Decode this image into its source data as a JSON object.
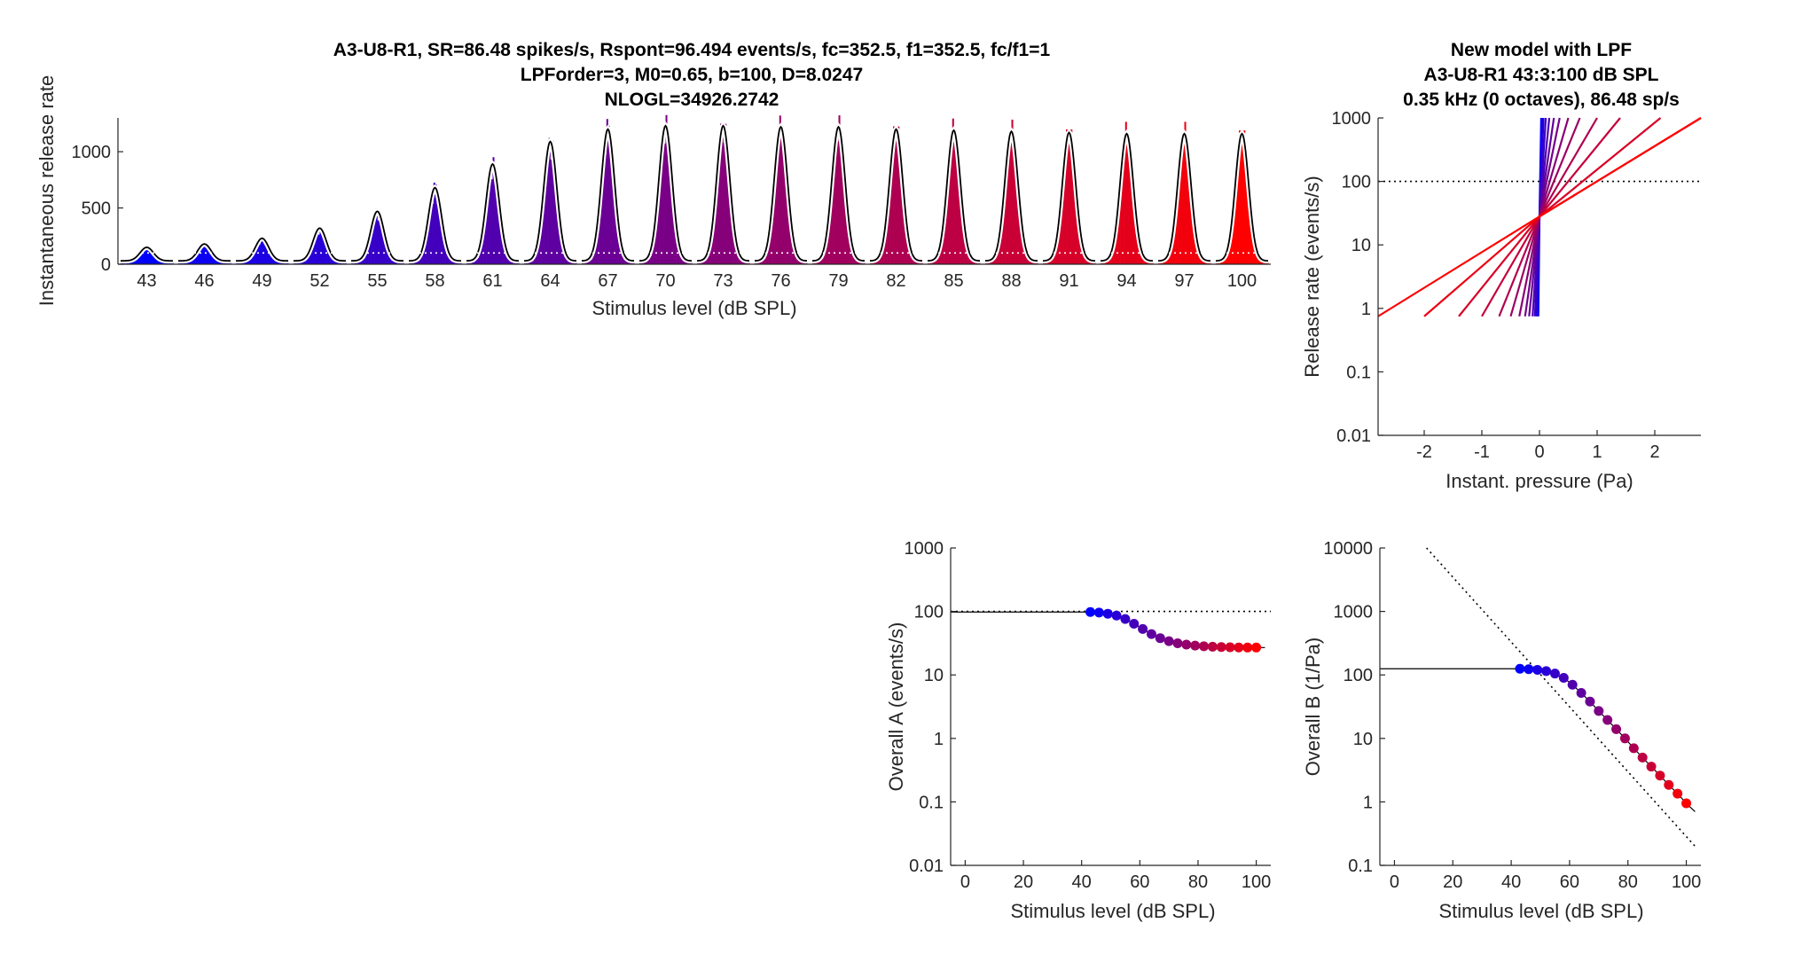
{
  "colors": {
    "low_level": "#0000ff",
    "high_level": "#ff0000",
    "model_fit": "#000000",
    "envelope_outline": "#ffffff",
    "reference_dotted": "#000000"
  },
  "chart_data": [
    {
      "id": "psth",
      "type": "bar",
      "title_lines": [
        "A3-U8-R1, SR=86.48 spikes/s, Rspont=96.494 events/s, fc=352.5, f1=352.5, fc/f1=1",
        "LPForder=3, M0=0.65, b=100, D=8.0247",
        "NLOGL=34926.2742"
      ],
      "xlabel": "Stimulus level (dB SPL)",
      "ylabel": "Instantaneous release rate",
      "ylim": [
        0,
        1300
      ],
      "yticks": [
        "0",
        "500",
        "1000"
      ],
      "categories": [
        "43",
        "46",
        "49",
        "52",
        "55",
        "58",
        "61",
        "64",
        "67",
        "70",
        "73",
        "76",
        "79",
        "82",
        "85",
        "88",
        "91",
        "94",
        "97",
        "100"
      ],
      "peak_rate": [
        150,
        180,
        230,
        320,
        470,
        680,
        890,
        1090,
        1200,
        1230,
        1230,
        1220,
        1220,
        1200,
        1190,
        1180,
        1170,
        1160,
        1160,
        1160
      ],
      "spont_rate": 100
    },
    {
      "id": "io",
      "type": "line",
      "title_lines": [
        "New model with LPF",
        "A3-U8-R1    43:3:100 dB SPL",
        "0.35 kHz (0 octaves), 86.48 sp/s"
      ],
      "xlabel": "Instant. pressure (Pa)",
      "ylabel": "Release rate (events/s)",
      "xlim": [
        -2.8,
        2.8
      ],
      "ylim_log10": [
        -2,
        3
      ],
      "xticks": [
        "-2",
        "-1",
        "0",
        "1",
        "2"
      ],
      "yticks": [
        "0.01",
        "0.1",
        "1",
        "10",
        "100",
        "1000"
      ],
      "reference_rate": 100,
      "series": [
        {
          "x": [
            -2.8,
            2.8
          ],
          "y": [
            0.75,
            1000
          ]
        },
        {
          "x": [
            -2.0,
            2.8
          ],
          "y": [
            0.75,
            1000
          ]
        },
        {
          "x": [
            -1.4,
            2.1
          ],
          "y": [
            0.75,
            1000
          ]
        },
        {
          "x": [
            -1.0,
            1.4
          ],
          "y": [
            0.75,
            1000
          ]
        },
        {
          "x": [
            -0.7,
            1.0
          ],
          "y": [
            0.75,
            1000
          ]
        },
        {
          "x": [
            -0.5,
            0.7
          ],
          "y": [
            0.75,
            1000
          ]
        },
        {
          "x": [
            -0.35,
            0.5
          ],
          "y": [
            0.75,
            1000
          ]
        },
        {
          "x": [
            -0.25,
            0.35
          ],
          "y": [
            0.75,
            1000
          ]
        },
        {
          "x": [
            -0.18,
            0.25
          ],
          "y": [
            0.75,
            1000
          ]
        },
        {
          "x": [
            -0.12,
            0.17
          ],
          "y": [
            0.75,
            1000
          ]
        },
        {
          "x": [
            -0.08,
            0.11
          ],
          "y": [
            0.75,
            1000
          ]
        },
        {
          "x": [
            -0.05,
            0.07
          ],
          "y": [
            0.75,
            1000
          ]
        },
        {
          "x": [
            -0.035,
            0.05
          ],
          "y": [
            0.75,
            1000
          ]
        },
        {
          "x": [
            -0.02,
            0.03
          ],
          "y": [
            0.75,
            1000
          ]
        }
      ]
    },
    {
      "id": "overallA",
      "type": "scatter",
      "xlabel": "Stimulus level (dB SPL)",
      "ylabel": "Overall A (events/s)",
      "xlim": [
        -5,
        105
      ],
      "ylim_log10": [
        -2,
        3
      ],
      "xticks": [
        "0",
        "20",
        "40",
        "60",
        "80",
        "100"
      ],
      "yticks": [
        "0.01",
        "0.1",
        "1",
        "10",
        "100",
        "1000"
      ],
      "reference_rate": 100,
      "x": [
        43,
        46,
        49,
        52,
        55,
        58,
        61,
        64,
        67,
        70,
        73,
        76,
        79,
        82,
        85,
        88,
        91,
        94,
        97,
        100
      ],
      "y": [
        98,
        96,
        92,
        86,
        76,
        64,
        53,
        44,
        38,
        34,
        31.5,
        30,
        29,
        28.3,
        27.8,
        27.5,
        27.3,
        27.1,
        27,
        27
      ],
      "fit_line": {
        "x": [
          -5,
          40,
          43,
          46,
          49,
          52,
          55,
          58,
          61,
          64,
          67,
          70,
          73,
          76,
          79,
          82,
          85,
          88,
          91,
          94,
          97,
          100,
          103
        ],
        "y": [
          98,
          98,
          98,
          96,
          92,
          86,
          76,
          64,
          53,
          44,
          38,
          34,
          31.5,
          30,
          29,
          28.3,
          27.8,
          27.5,
          27.3,
          27.1,
          27,
          27,
          27
        ]
      }
    },
    {
      "id": "overallB",
      "type": "scatter",
      "xlabel": "Stimulus level (dB SPL)",
      "ylabel": "Overall B (1/Pa)",
      "xlim": [
        -5,
        105
      ],
      "ylim_log10": [
        -1,
        4
      ],
      "xticks": [
        "0",
        "20",
        "40",
        "60",
        "80",
        "100"
      ],
      "yticks": [
        "0.1",
        "1",
        "10",
        "100",
        "1000",
        "10000"
      ],
      "x": [
        43,
        46,
        49,
        52,
        55,
        58,
        61,
        64,
        67,
        70,
        73,
        76,
        79,
        82,
        85,
        88,
        91,
        94,
        97,
        100
      ],
      "y": [
        125,
        123,
        120,
        115,
        105,
        90,
        70,
        52,
        38,
        27,
        19.5,
        14,
        10,
        7,
        5,
        3.6,
        2.6,
        1.85,
        1.35,
        0.95
      ],
      "fit_line": {
        "x": [
          -5,
          40,
          43,
          46,
          49,
          52,
          55,
          58,
          61,
          64,
          67,
          70,
          73,
          76,
          79,
          82,
          85,
          88,
          91,
          94,
          97,
          100,
          103
        ],
        "y": [
          125,
          125,
          125,
          123,
          120,
          115,
          105,
          90,
          70,
          52,
          38,
          27,
          19.5,
          14,
          10,
          7,
          5,
          3.6,
          2.6,
          1.85,
          1.35,
          0.95,
          0.7
        ]
      },
      "reference_line": {
        "x": [
          11,
          103
        ],
        "y": [
          10000,
          0.2
        ]
      }
    }
  ]
}
